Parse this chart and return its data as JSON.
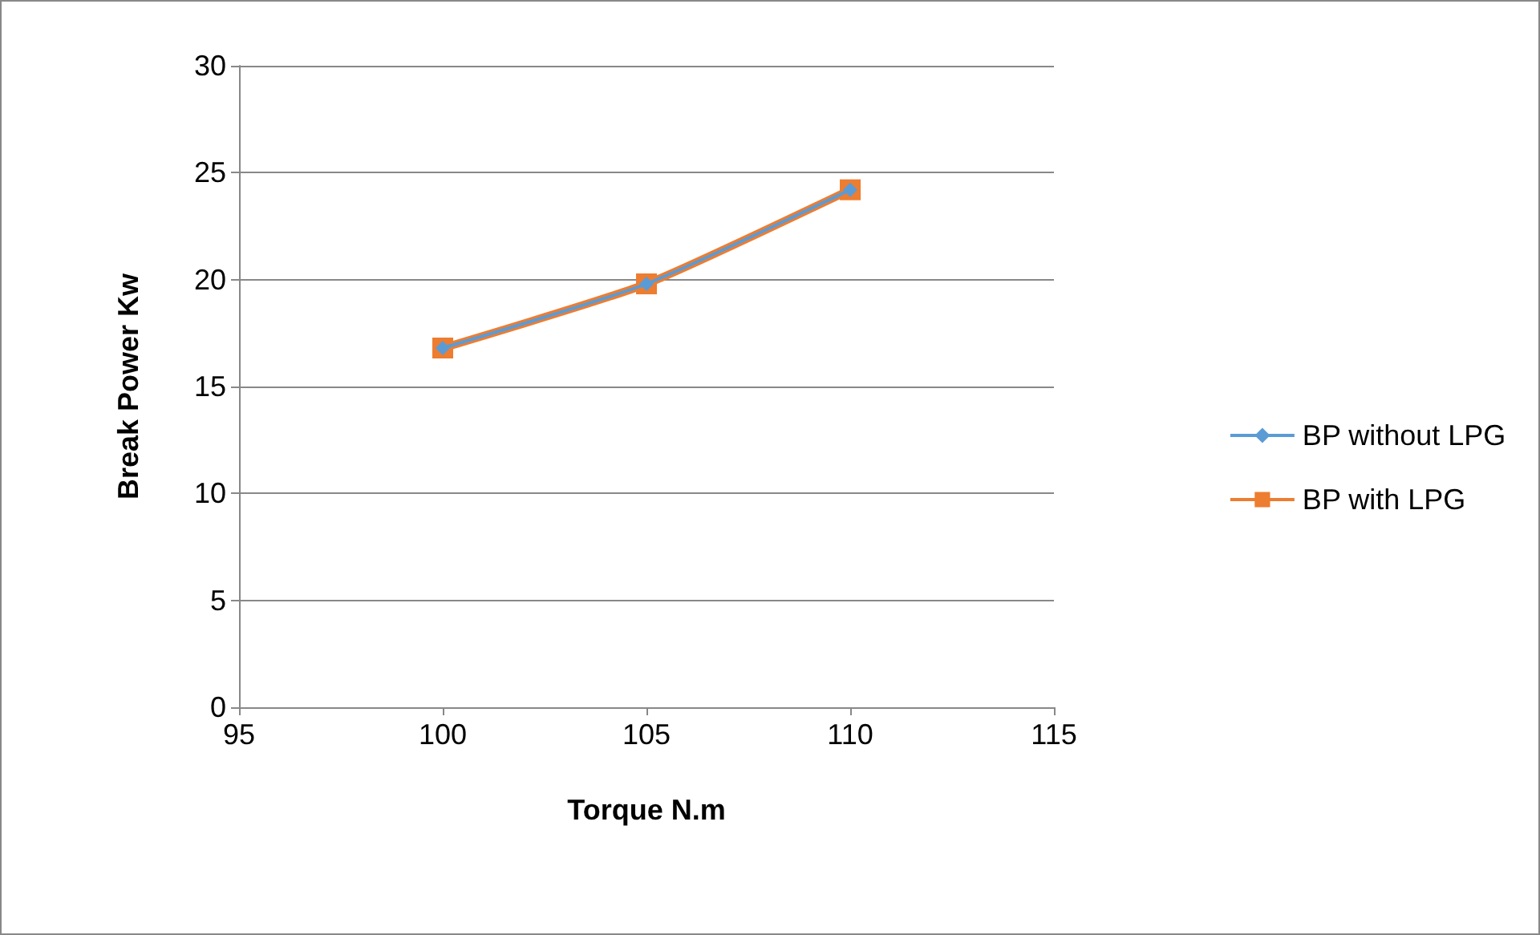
{
  "chart_data": {
    "type": "line",
    "xlabel": "Torque N.m",
    "ylabel": "Break Power Kw",
    "x": [
      100,
      105,
      110
    ],
    "series": [
      {
        "name": "BP without LPG",
        "color": "#5b9bd5",
        "values": [
          16.8,
          19.8,
          24.2
        ],
        "marker": "diamond"
      },
      {
        "name": "BP with LPG",
        "color": "#ed7d31",
        "values": [
          16.8,
          19.8,
          24.2
        ],
        "marker": "square"
      }
    ],
    "xlim": [
      95,
      115
    ],
    "xticks": [
      95,
      100,
      105,
      110,
      115
    ],
    "ylim": [
      0,
      30
    ],
    "yticks": [
      0,
      5,
      10,
      15,
      20,
      25,
      30
    ],
    "grid": "y",
    "legend": "right"
  }
}
